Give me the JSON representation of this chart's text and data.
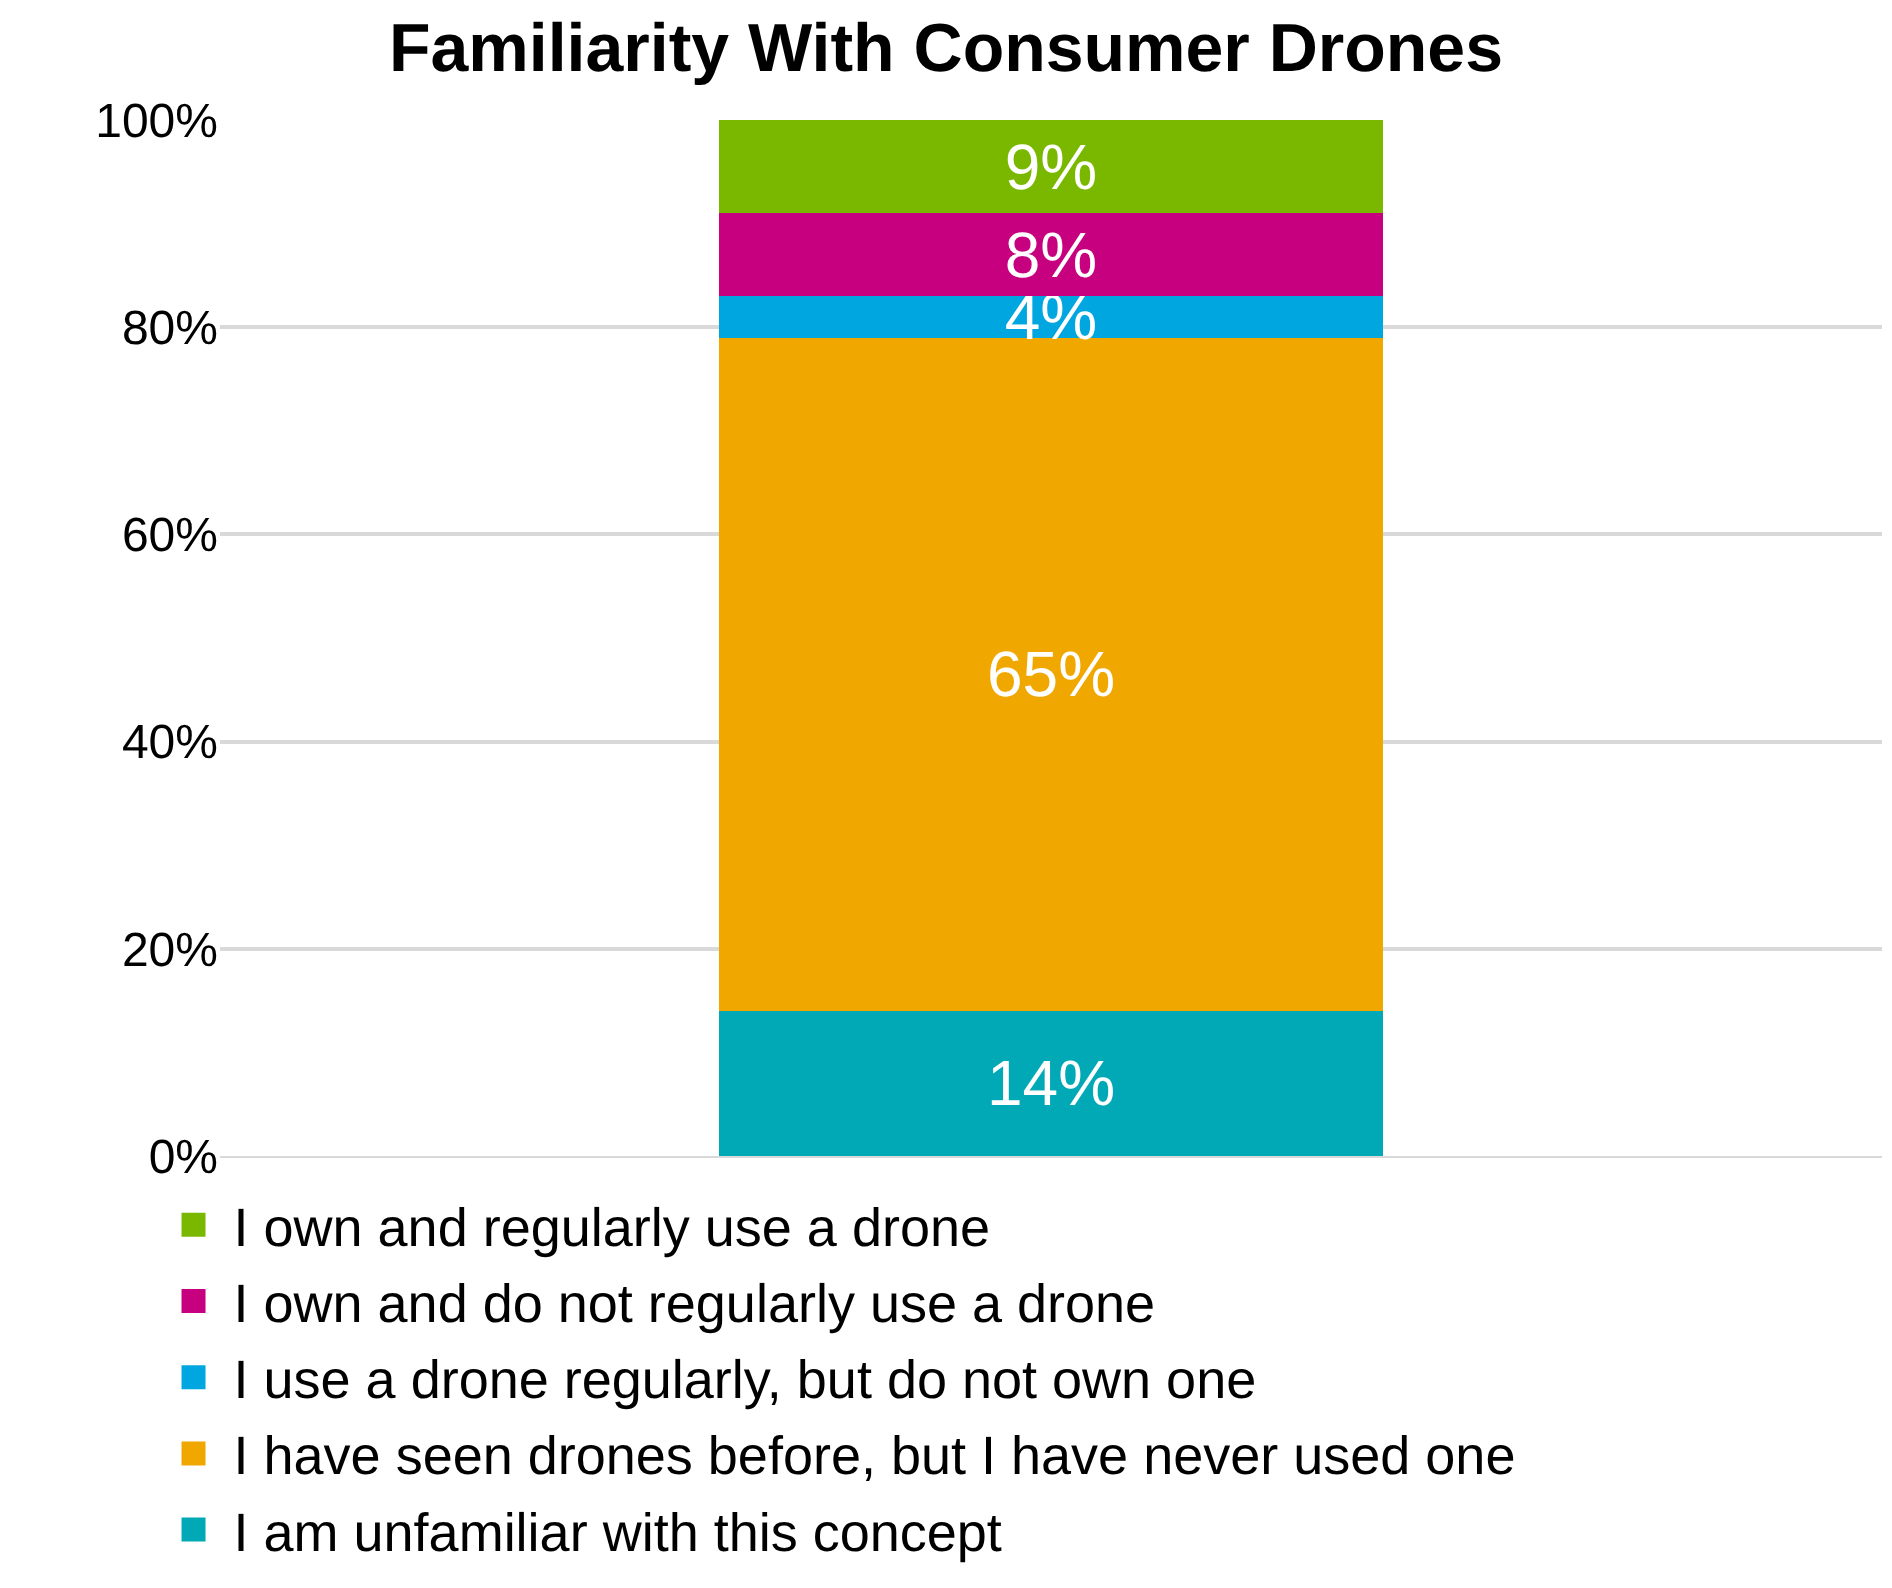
{
  "chart_data": {
    "type": "bar",
    "title": "Familiarity With Consumer Drones",
    "categories": [
      null
    ],
    "stacked": true,
    "series": [
      {
        "name": "I am unfamiliar with this concept",
        "color": "#00a9b5",
        "values": [
          14
        ],
        "value_labels": [
          "14%"
        ]
      },
      {
        "name": "I have seen drones before, but I have never used one",
        "color": "#f0a800",
        "values": [
          65
        ],
        "value_labels": [
          "65%"
        ]
      },
      {
        "name": "I use a drone regularly, but do not own one",
        "color": "#00a6e0",
        "values": [
          4
        ],
        "value_labels": [
          "4%"
        ]
      },
      {
        "name": "I own and do not regularly use a drone",
        "color": "#c6007e",
        "values": [
          8
        ],
        "value_labels": [
          "8%"
        ]
      },
      {
        "name": "I own and regularly use a drone",
        "color": "#7ab800",
        "values": [
          9
        ],
        "value_labels": [
          "9%"
        ]
      }
    ],
    "ylim": [
      0,
      100
    ],
    "yticks": [
      {
        "value": 0,
        "label": "0%"
      },
      {
        "value": 20,
        "label": "20%"
      },
      {
        "value": 40,
        "label": "40%"
      },
      {
        "value": 60,
        "label": "60%"
      },
      {
        "value": 80,
        "label": "80%"
      },
      {
        "value": 100,
        "label": "100%"
      }
    ],
    "grid": "y",
    "legend": "bottom",
    "tick_labels": "y"
  }
}
